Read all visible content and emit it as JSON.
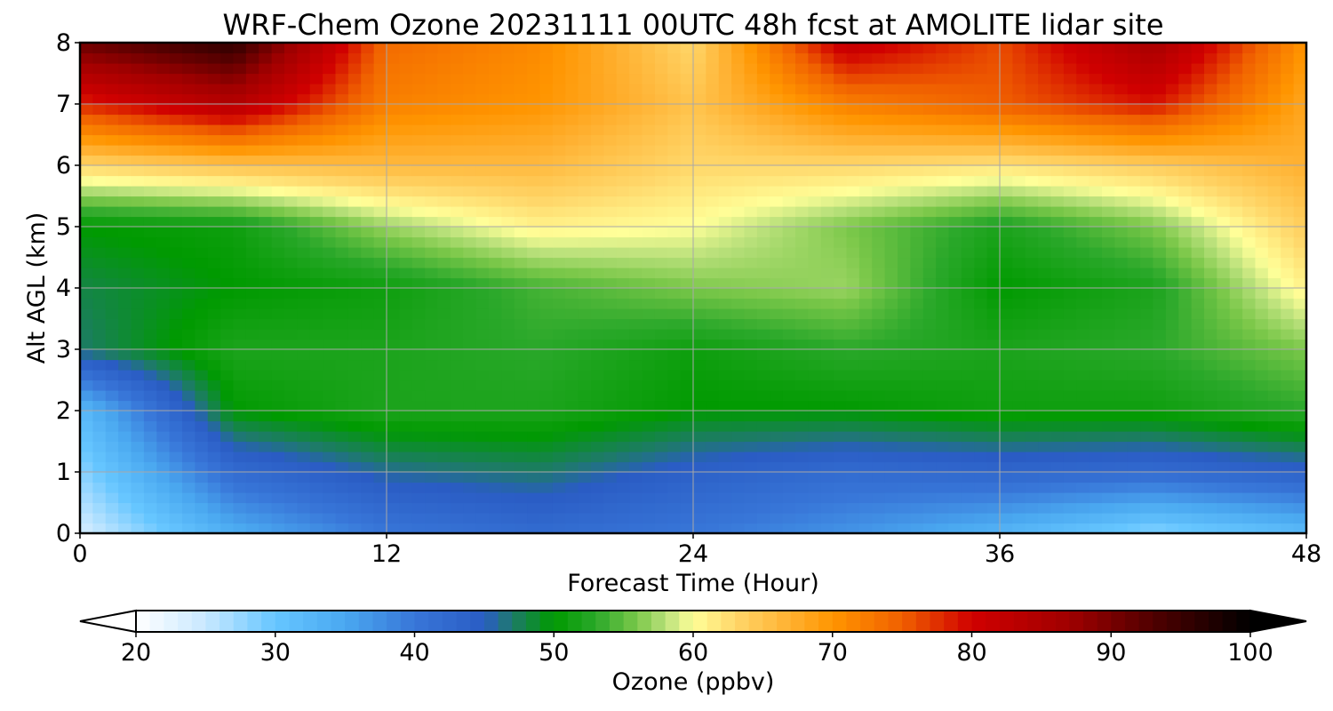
{
  "chart_data": {
    "type": "heatmap",
    "subtype": "filled-contour time-height cross section",
    "title": "WRF-Chem Ozone  20231111 00UTC 48h fcst at AMOLITE lidar site",
    "xlabel": "Forecast Time (Hour)",
    "ylabel": "Alt AGL (km)",
    "xlim": [
      0,
      48
    ],
    "ylim": [
      0,
      8
    ],
    "xticks": [
      0,
      12,
      24,
      36,
      48
    ],
    "yticks": [
      0,
      1,
      2,
      3,
      4,
      5,
      6,
      7,
      8
    ],
    "grid": true,
    "x": [
      0,
      6,
      12,
      18,
      24,
      30,
      36,
      42,
      48
    ],
    "y": [
      0,
      1,
      2,
      3,
      4,
      5,
      6,
      7,
      8
    ],
    "z": [
      [
        24,
        34,
        40,
        42,
        40,
        37,
        33,
        28,
        32
      ],
      [
        28,
        42,
        46,
        47,
        44,
        42,
        43,
        42,
        44
      ],
      [
        32,
        50,
        52,
        52,
        50,
        50,
        51,
        51,
        53
      ],
      [
        47,
        52,
        52,
        53,
        51,
        53,
        52,
        53,
        56
      ],
      [
        48,
        50,
        51,
        54,
        56,
        57,
        50,
        52,
        61
      ],
      [
        50,
        51,
        57,
        61,
        60,
        56,
        52,
        56,
        64
      ],
      [
        63,
        65,
        66,
        66,
        63,
        63,
        62,
        64,
        67
      ],
      [
        78,
        84,
        72,
        70,
        65,
        72,
        75,
        79,
        68
      ],
      [
        91,
        96,
        74,
        71,
        63,
        82,
        76,
        86,
        70
      ]
    ],
    "colorbar": {
      "label": "Ozone  (ppbv)",
      "min": 20,
      "max": 100,
      "ticks": [
        20,
        30,
        40,
        50,
        60,
        70,
        80,
        90,
        100
      ],
      "extend": "both",
      "colors": {
        "20": "#ffffff",
        "25": "#c8e8ff",
        "30": "#66c6ff",
        "35": "#4aa8f0",
        "40": "#3876d8",
        "45": "#2a5cc4",
        "47": "#1e7a6a",
        "50": "#009a00",
        "53": "#2aa82a",
        "56": "#7cc84a",
        "58": "#b8e07a",
        "60": "#ffff99",
        "63": "#ffd76a",
        "67": "#ffb030",
        "70": "#ff9500",
        "75": "#f06000",
        "80": "#d00000",
        "87": "#a00000",
        "93": "#500000",
        "100": "#000000"
      }
    }
  }
}
